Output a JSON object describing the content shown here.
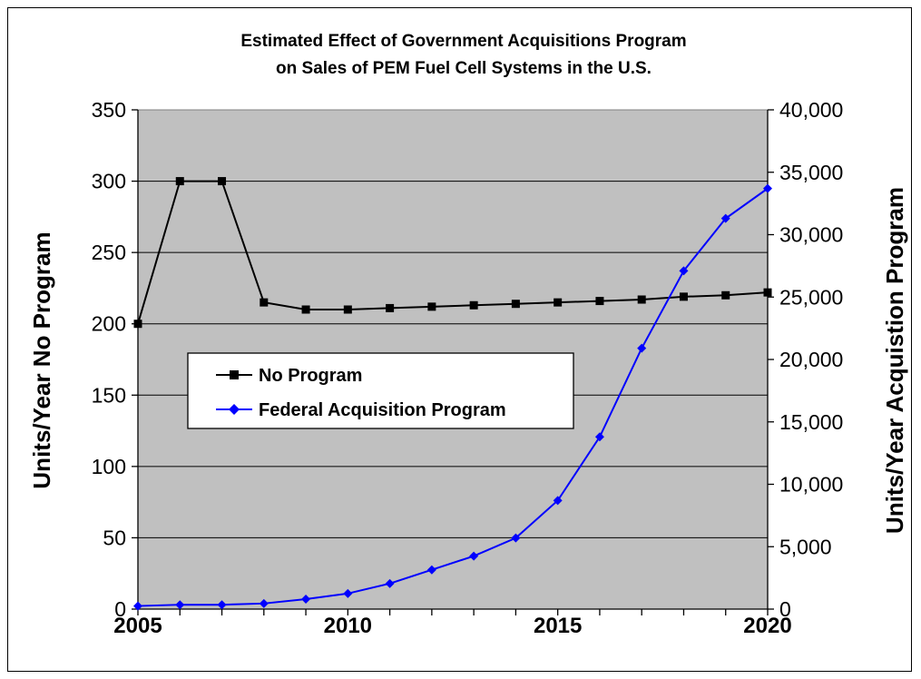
{
  "chart_data": {
    "type": "line",
    "title": "Estimated Effect of Government Acquisitions Program",
    "subtitle": "on Sales of PEM Fuel Cell Systems in the U.S.",
    "ylabel_left": "Units/Year No Program",
    "ylabel_right": "Units/Year Acquistion Program",
    "xlim": [
      2005,
      2020
    ],
    "ylim_left": [
      0,
      350
    ],
    "ylim_right": [
      0,
      40000
    ],
    "x_tick_labels": [
      "2005",
      "2010",
      "2015",
      "2020"
    ],
    "y_left_tick_labels": [
      "0",
      "50",
      "100",
      "150",
      "200",
      "250",
      "300",
      "350"
    ],
    "y_right_tick_labels": [
      "0",
      "5,000",
      "10,000",
      "15,000",
      "20,000",
      "25,000",
      "30,000",
      "35,000",
      "40,000"
    ],
    "background_color": "#c0c0c0",
    "grid": "horizontal",
    "legend_position": "center-left",
    "series": [
      {
        "name": "No Program",
        "axis": "left",
        "color": "#000000",
        "marker": "square",
        "x": [
          2005,
          2006,
          2007,
          2008,
          2009,
          2010,
          2011,
          2012,
          2013,
          2014,
          2015,
          2016,
          2017,
          2018,
          2019,
          2020
        ],
        "values": [
          200,
          300,
          300,
          215,
          210,
          210,
          211,
          212,
          213,
          214,
          215,
          216,
          217,
          219,
          220,
          222
        ]
      },
      {
        "name": "Federal Acquisition Program",
        "axis": "right",
        "color": "#0000ff",
        "marker": "diamond",
        "x": [
          2005,
          2006,
          2007,
          2008,
          2009,
          2010,
          2011,
          2012,
          2013,
          2014,
          2015,
          2016,
          2017,
          2018,
          2019,
          2020
        ],
        "values": [
          250,
          350,
          350,
          450,
          800,
          1250,
          2050,
          3150,
          4250,
          5700,
          8700,
          13800,
          20900,
          27100,
          31300,
          33700
        ]
      }
    ]
  }
}
